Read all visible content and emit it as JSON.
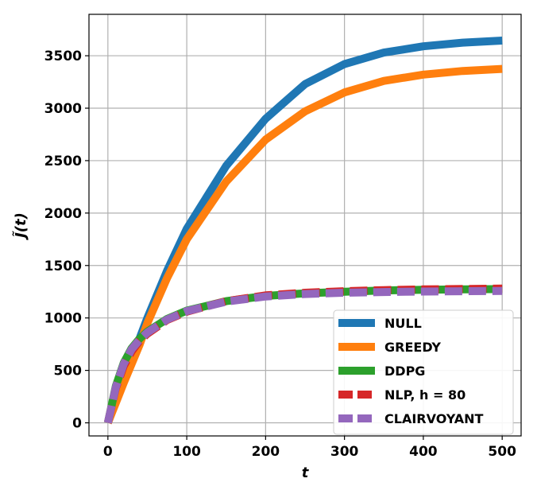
{
  "chart_data": {
    "type": "line",
    "xlabel": "t",
    "ylabel": "J̃(t)",
    "xlim": [
      -24,
      524
    ],
    "ylim": [
      -125,
      3895
    ],
    "xticks": [
      0,
      100,
      200,
      300,
      400,
      500
    ],
    "yticks": [
      0,
      500,
      1000,
      1500,
      2000,
      2500,
      3000,
      3500
    ],
    "grid": true,
    "legend_position": "lower-right",
    "series": [
      {
        "name": "NULL",
        "color": "#1f77b4",
        "style": "solid",
        "x": [
          0,
          10,
          20,
          30,
          40,
          50,
          75,
          100,
          150,
          200,
          250,
          300,
          350,
          400,
          450,
          500
        ],
        "y": [
          0,
          200,
          400,
          600,
          800,
          1000,
          1450,
          1850,
          2450,
          2900,
          3230,
          3420,
          3530,
          3590,
          3625,
          3645
        ]
      },
      {
        "name": "GREEDY",
        "color": "#ff7f0e",
        "style": "solid",
        "x": [
          0,
          10,
          20,
          30,
          40,
          50,
          75,
          100,
          150,
          200,
          250,
          300,
          350,
          400,
          450,
          500
        ],
        "y": [
          0,
          190,
          380,
          560,
          740,
          950,
          1380,
          1750,
          2300,
          2700,
          2970,
          3150,
          3260,
          3320,
          3355,
          3375
        ]
      },
      {
        "name": "DDPG",
        "color": "#2ca02c",
        "style": "solid",
        "x": [
          0,
          10,
          20,
          30,
          40,
          50,
          75,
          100,
          150,
          200,
          250,
          300,
          350,
          400,
          450,
          500
        ],
        "y": [
          0,
          350,
          570,
          710,
          800,
          870,
          990,
          1070,
          1160,
          1210,
          1235,
          1250,
          1262,
          1268,
          1272,
          1275
        ]
      },
      {
        "name": "NLP, h = 80",
        "color": "#d62728",
        "style": "dashed",
        "x": [
          0,
          10,
          20,
          30,
          40,
          50,
          75,
          100,
          150,
          200,
          250,
          300,
          350,
          400,
          450,
          500
        ],
        "y": [
          0,
          330,
          540,
          680,
          780,
          850,
          980,
          1060,
          1160,
          1215,
          1240,
          1255,
          1265,
          1272,
          1276,
          1280
        ]
      },
      {
        "name": "CLAIRVOYANT",
        "color": "#9467bd",
        "style": "dashed",
        "x": [
          0,
          10,
          20,
          30,
          40,
          50,
          75,
          100,
          150,
          200,
          250,
          300,
          350,
          400,
          450,
          500
        ],
        "y": [
          0,
          340,
          560,
          700,
          790,
          860,
          985,
          1065,
          1155,
          1205,
          1228,
          1240,
          1247,
          1252,
          1255,
          1257
        ]
      }
    ]
  }
}
